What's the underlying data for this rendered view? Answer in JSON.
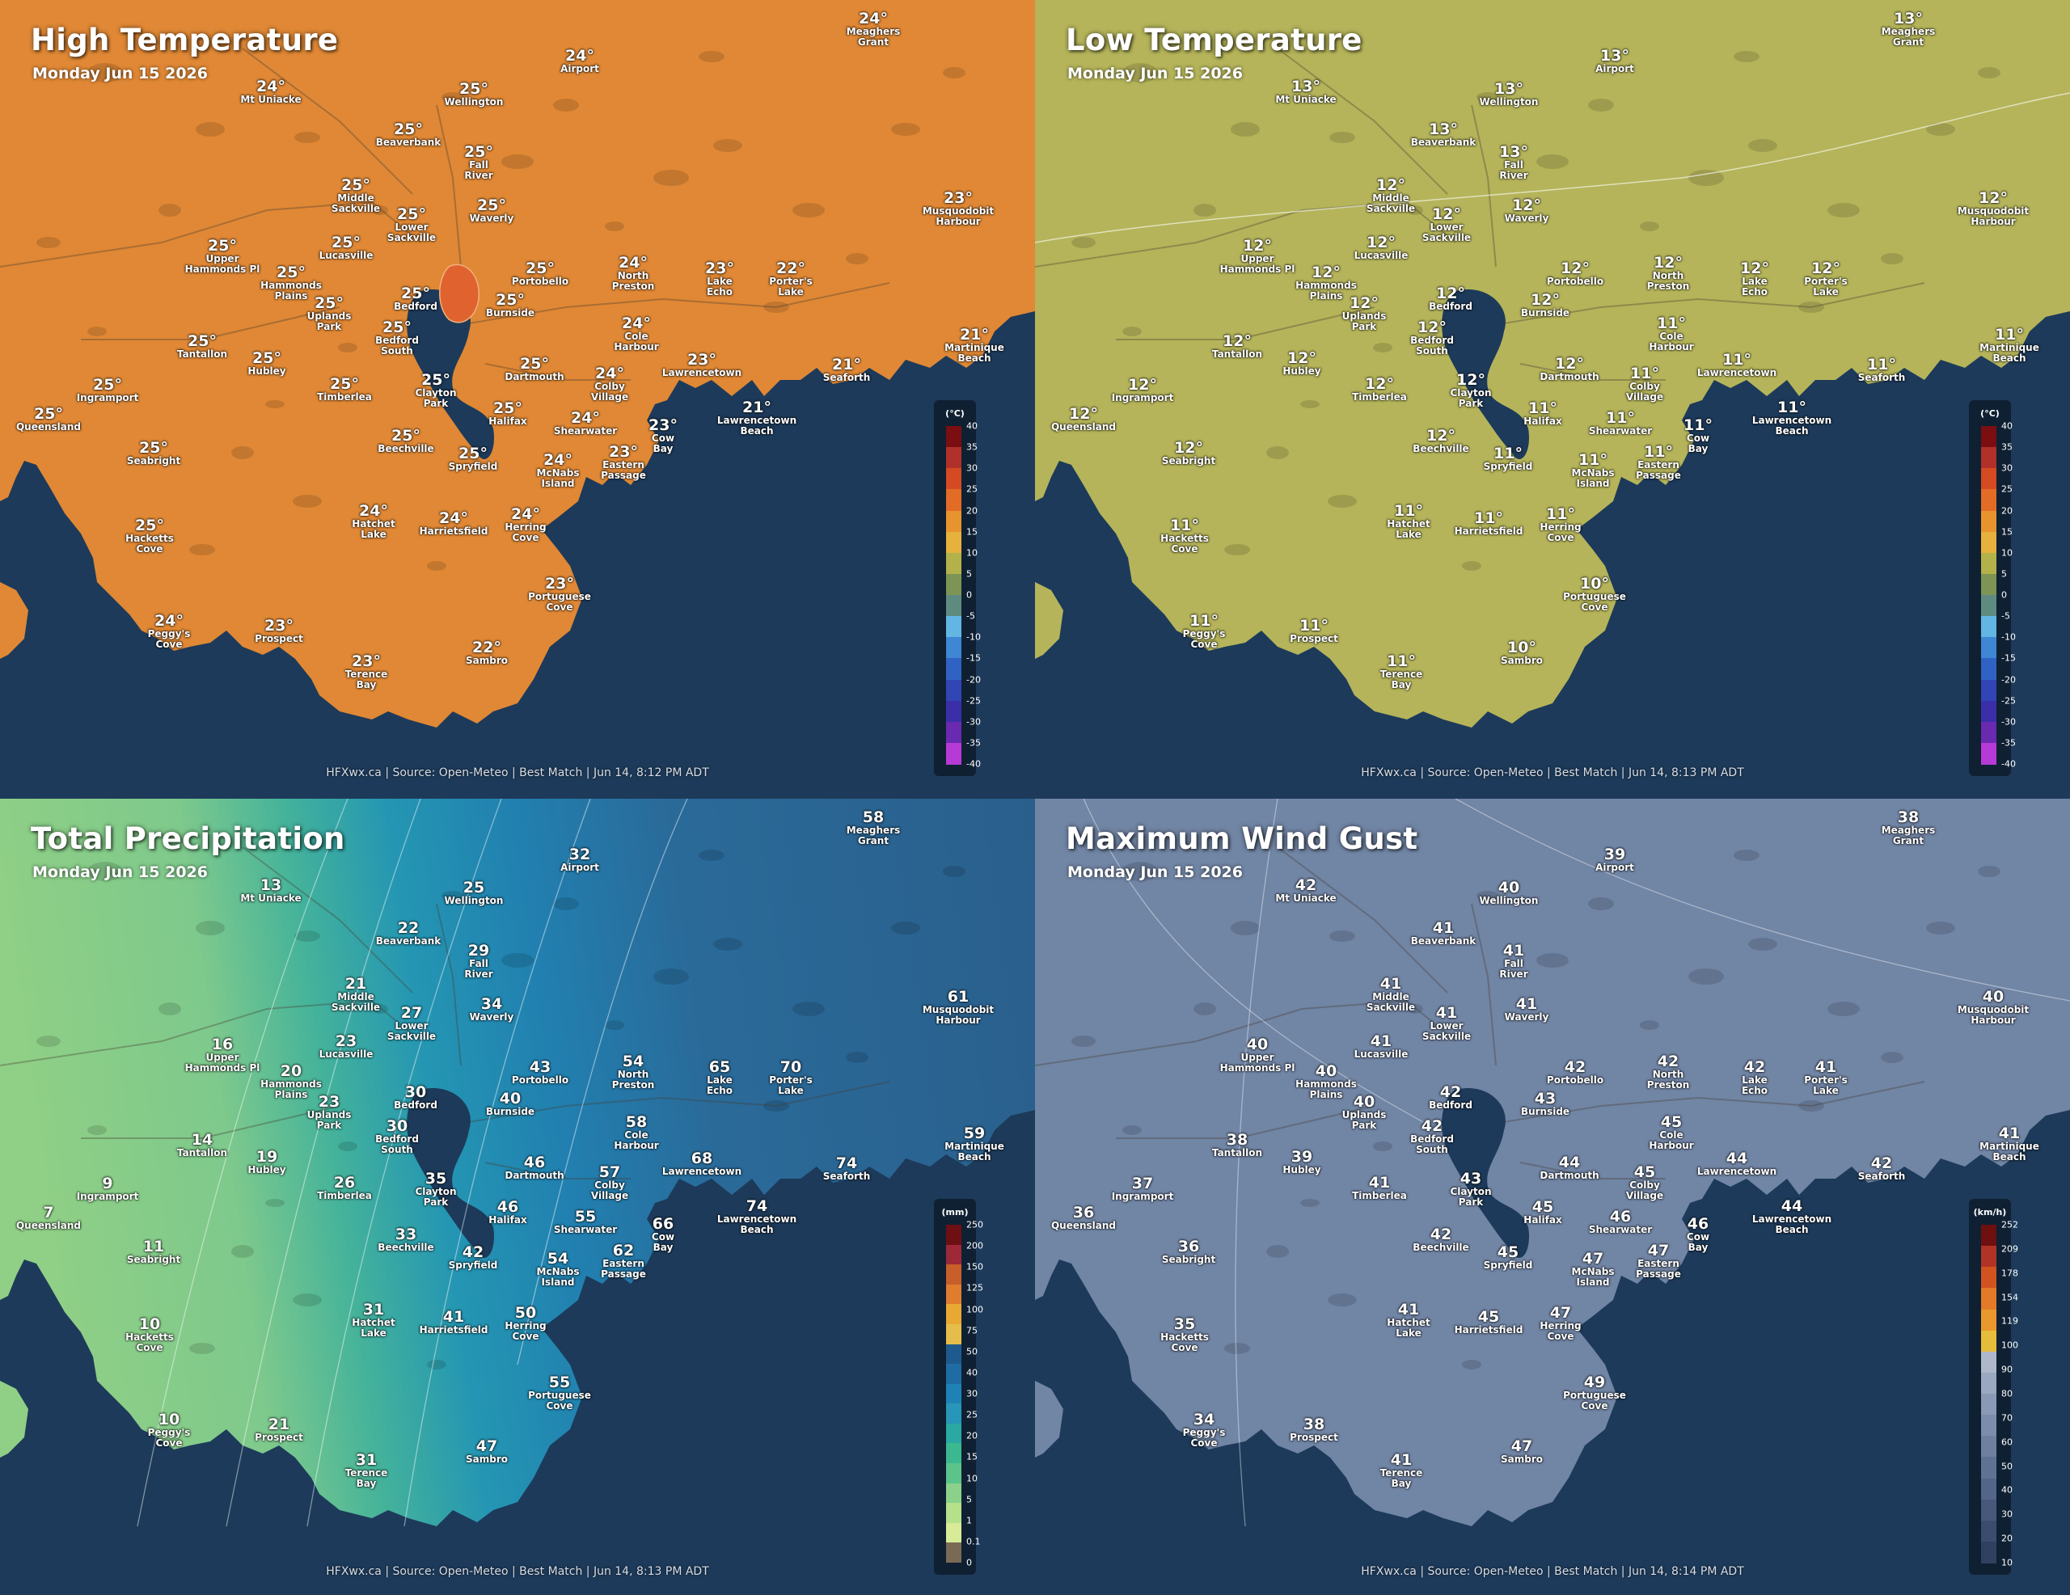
{
  "panels": [
    {
      "title": "High Temperature",
      "date": "Monday Jun 15 2026",
      "footer": "HFXwx.ca | Source: Open-Meteo | Best Match | Jun 14, 8:12 PM ADT",
      "suffix": "°",
      "land_color": "#e08835",
      "legend": {
        "unit": "(°C)",
        "colors": [
          "#7a0e10",
          "#b0302a",
          "#d44a22",
          "#e26b26",
          "#e8942e",
          "#e6b13c",
          "#b3b149",
          "#7d9455",
          "#5f8a80",
          "#62b6e3",
          "#3f86d5",
          "#2f62c2",
          "#3145b5",
          "#3a2fa8",
          "#6a2ab0",
          "#b63ad6"
        ],
        "ticks": [
          "40",
          "35",
          "30",
          "25",
          "20",
          "15",
          "10",
          "5",
          "0",
          "-5",
          "-10",
          "-15",
          "-20",
          "-25",
          "-30",
          "-35",
          "-40"
        ]
      },
      "stations": [
        {
          "name": "Meaghers Grant",
          "value": "24"
        },
        {
          "name": "Airport",
          "value": "24"
        },
        {
          "name": "Mt Uniacke",
          "value": "24"
        },
        {
          "name": "Wellington",
          "value": "25"
        },
        {
          "name": "Beaverbank",
          "value": "25"
        },
        {
          "name": "Fall River",
          "value": "25"
        },
        {
          "name": "Middle Sackville",
          "value": "25"
        },
        {
          "name": "Waverly",
          "value": "25"
        },
        {
          "name": "Lower Sackville",
          "value": "25"
        },
        {
          "name": "Musquodobit Harbour",
          "value": "23"
        },
        {
          "name": "Upper Hammonds Pl",
          "value": "25"
        },
        {
          "name": "Lucasville",
          "value": "25"
        },
        {
          "name": "Portobello",
          "value": "25"
        },
        {
          "name": "North Preston",
          "value": "24"
        },
        {
          "name": "Lake Echo",
          "value": "23"
        },
        {
          "name": "Porter's Lake",
          "value": "22"
        },
        {
          "name": "Hammonds Plains",
          "value": "25"
        },
        {
          "name": "Bedford",
          "value": "25"
        },
        {
          "name": "Burnside",
          "value": "25"
        },
        {
          "name": "Uplands Park",
          "value": "25"
        },
        {
          "name": "Bedford South",
          "value": "25"
        },
        {
          "name": "Cole Harbour",
          "value": "24"
        },
        {
          "name": "Martinique Beach",
          "value": "21"
        },
        {
          "name": "Tantallon",
          "value": "25"
        },
        {
          "name": "Hubley",
          "value": "25"
        },
        {
          "name": "Dartmouth",
          "value": "25"
        },
        {
          "name": "Lawrencetown",
          "value": "23"
        },
        {
          "name": "Seaforth",
          "value": "21"
        },
        {
          "name": "Ingramport",
          "value": "25"
        },
        {
          "name": "Timberlea",
          "value": "25"
        },
        {
          "name": "Clayton Park",
          "value": "25"
        },
        {
          "name": "Colby Village",
          "value": "24"
        },
        {
          "name": "Queensland",
          "value": "25"
        },
        {
          "name": "Halifax",
          "value": "25"
        },
        {
          "name": "Lawrencetown Beach",
          "value": "21"
        },
        {
          "name": "Shearwater",
          "value": "24"
        },
        {
          "name": "Cow Bay",
          "value": "23"
        },
        {
          "name": "Beechville",
          "value": "25"
        },
        {
          "name": "Seabright",
          "value": "25"
        },
        {
          "name": "Spryfield",
          "value": "25"
        },
        {
          "name": "McNabs Island",
          "value": "24"
        },
        {
          "name": "Eastern Passage",
          "value": "23"
        },
        {
          "name": "Hatchet Lake",
          "value": "24"
        },
        {
          "name": "Harrietsfield",
          "value": "24"
        },
        {
          "name": "Herring Cove",
          "value": "24"
        },
        {
          "name": "Hacketts Cove",
          "value": "25"
        },
        {
          "name": "Portuguese Cove",
          "value": "23"
        },
        {
          "name": "Peggy's Cove",
          "value": "24"
        },
        {
          "name": "Prospect",
          "value": "23"
        },
        {
          "name": "Sambro",
          "value": "22"
        },
        {
          "name": "Terence Bay",
          "value": "23"
        }
      ]
    },
    {
      "title": "Low Temperature",
      "date": "Monday Jun 15 2026",
      "footer": "HFXwx.ca | Source: Open-Meteo | Best Match | Jun 14, 8:13 PM ADT",
      "suffix": "°",
      "land_color": "#b5b45a",
      "legend": {
        "unit": "(°C)",
        "colors": [
          "#7a0e10",
          "#b0302a",
          "#d44a22",
          "#e26b26",
          "#e8942e",
          "#e6b13c",
          "#b3b149",
          "#7d9455",
          "#5f8a80",
          "#62b6e3",
          "#3f86d5",
          "#2f62c2",
          "#3145b5",
          "#3a2fa8",
          "#6a2ab0",
          "#b63ad6"
        ],
        "ticks": [
          "40",
          "35",
          "30",
          "25",
          "20",
          "15",
          "10",
          "5",
          "0",
          "-5",
          "-10",
          "-15",
          "-20",
          "-25",
          "-30",
          "-35",
          "-40"
        ]
      },
      "stations": [
        {
          "name": "Meaghers Grant",
          "value": "13"
        },
        {
          "name": "Airport",
          "value": "13"
        },
        {
          "name": "Mt Uniacke",
          "value": "13"
        },
        {
          "name": "Wellington",
          "value": "13"
        },
        {
          "name": "Beaverbank",
          "value": "13"
        },
        {
          "name": "Fall River",
          "value": "13"
        },
        {
          "name": "Middle Sackville",
          "value": "12"
        },
        {
          "name": "Waverly",
          "value": "12"
        },
        {
          "name": "Lower Sackville",
          "value": "12"
        },
        {
          "name": "Musquodobit Harbour",
          "value": "12"
        },
        {
          "name": "Upper Hammonds Pl",
          "value": "12"
        },
        {
          "name": "Lucasville",
          "value": "12"
        },
        {
          "name": "Portobello",
          "value": "12"
        },
        {
          "name": "North Preston",
          "value": "12"
        },
        {
          "name": "Lake Echo",
          "value": "12"
        },
        {
          "name": "Porter's Lake",
          "value": "12"
        },
        {
          "name": "Hammonds Plains",
          "value": "12"
        },
        {
          "name": "Bedford",
          "value": "12"
        },
        {
          "name": "Burnside",
          "value": "12"
        },
        {
          "name": "Uplands Park",
          "value": "12"
        },
        {
          "name": "Bedford South",
          "value": "12"
        },
        {
          "name": "Cole Harbour",
          "value": "11"
        },
        {
          "name": "Martinique Beach",
          "value": "11"
        },
        {
          "name": "Tantallon",
          "value": "12"
        },
        {
          "name": "Hubley",
          "value": "12"
        },
        {
          "name": "Dartmouth",
          "value": "12"
        },
        {
          "name": "Lawrencetown",
          "value": "11"
        },
        {
          "name": "Seaforth",
          "value": "11"
        },
        {
          "name": "Ingramport",
          "value": "12"
        },
        {
          "name": "Timberlea",
          "value": "12"
        },
        {
          "name": "Clayton Park",
          "value": "12"
        },
        {
          "name": "Colby Village",
          "value": "11"
        },
        {
          "name": "Queensland",
          "value": "12"
        },
        {
          "name": "Halifax",
          "value": "11"
        },
        {
          "name": "Lawrencetown Beach",
          "value": "11"
        },
        {
          "name": "Shearwater",
          "value": "11"
        },
        {
          "name": "Cow Bay",
          "value": "11"
        },
        {
          "name": "Beechville",
          "value": "12"
        },
        {
          "name": "Seabright",
          "value": "12"
        },
        {
          "name": "Spryfield",
          "value": "11"
        },
        {
          "name": "McNabs Island",
          "value": "11"
        },
        {
          "name": "Eastern Passage",
          "value": "11"
        },
        {
          "name": "Hatchet Lake",
          "value": "11"
        },
        {
          "name": "Harrietsfield",
          "value": "11"
        },
        {
          "name": "Herring Cove",
          "value": "11"
        },
        {
          "name": "Hacketts Cove",
          "value": "11"
        },
        {
          "name": "Portuguese Cove",
          "value": "10"
        },
        {
          "name": "Peggy's Cove",
          "value": "11"
        },
        {
          "name": "Prospect",
          "value": "11"
        },
        {
          "name": "Sambro",
          "value": "10"
        },
        {
          "name": "Terence Bay",
          "value": "11"
        }
      ]
    },
    {
      "title": "Total Precipitation",
      "date": "Monday Jun 15 2026",
      "footer": "HFXwx.ca | Source: Open-Meteo | Best Match | Jun 14, 8:13 PM ADT",
      "suffix": "",
      "land_color": "#2a6a99",
      "legend": {
        "unit": "(mm)",
        "colors": [
          "#6e0f14",
          "#9e2738",
          "#c85e2a",
          "#e07c2e",
          "#e8a832",
          "#e6bd4a",
          "#1f5a8e",
          "#1e6ca3",
          "#1f82b6",
          "#2796b8",
          "#2aa8a2",
          "#3cb890",
          "#5bc48a",
          "#8bd18a",
          "#b6e08a",
          "#d8eb97",
          "#7a6a55"
        ],
        "ticks": [
          "250",
          "200",
          "150",
          "125",
          "100",
          "75",
          "50",
          "40",
          "30",
          "25",
          "20",
          "15",
          "10",
          "5",
          "1",
          "0.1",
          "0"
        ]
      },
      "stations": [
        {
          "name": "Meaghers Grant",
          "value": "58"
        },
        {
          "name": "Airport",
          "value": "32"
        },
        {
          "name": "Mt Uniacke",
          "value": "13"
        },
        {
          "name": "Wellington",
          "value": "25"
        },
        {
          "name": "Beaverbank",
          "value": "22"
        },
        {
          "name": "Fall River",
          "value": "29"
        },
        {
          "name": "Middle Sackville",
          "value": "21"
        },
        {
          "name": "Waverly",
          "value": "34"
        },
        {
          "name": "Lower Sackville",
          "value": "27"
        },
        {
          "name": "Musquodobit Harbour",
          "value": "61"
        },
        {
          "name": "Upper Hammonds Pl",
          "value": "16"
        },
        {
          "name": "Lucasville",
          "value": "23"
        },
        {
          "name": "Portobello",
          "value": "43"
        },
        {
          "name": "North Preston",
          "value": "54"
        },
        {
          "name": "Lake Echo",
          "value": "65"
        },
        {
          "name": "Porter's Lake",
          "value": "70"
        },
        {
          "name": "Hammonds Plains",
          "value": "20"
        },
        {
          "name": "Bedford",
          "value": "30"
        },
        {
          "name": "Burnside",
          "value": "40"
        },
        {
          "name": "Uplands Park",
          "value": "23"
        },
        {
          "name": "Bedford South",
          "value": "30"
        },
        {
          "name": "Cole Harbour",
          "value": "58"
        },
        {
          "name": "Martinique Beach",
          "value": "59"
        },
        {
          "name": "Tantallon",
          "value": "14"
        },
        {
          "name": "Hubley",
          "value": "19"
        },
        {
          "name": "Dartmouth",
          "value": "46"
        },
        {
          "name": "Lawrencetown",
          "value": "68"
        },
        {
          "name": "Seaforth",
          "value": "74"
        },
        {
          "name": "Ingramport",
          "value": "9"
        },
        {
          "name": "Timberlea",
          "value": "26"
        },
        {
          "name": "Clayton Park",
          "value": "35"
        },
        {
          "name": "Colby Village",
          "value": "57"
        },
        {
          "name": "Queensland",
          "value": "7"
        },
        {
          "name": "Halifax",
          "value": "46"
        },
        {
          "name": "Lawrencetown Beach",
          "value": "74"
        },
        {
          "name": "Shearwater",
          "value": "55"
        },
        {
          "name": "Cow Bay",
          "value": "66"
        },
        {
          "name": "Beechville",
          "value": "33"
        },
        {
          "name": "Seabright",
          "value": "11"
        },
        {
          "name": "Spryfield",
          "value": "42"
        },
        {
          "name": "McNabs Island",
          "value": "54"
        },
        {
          "name": "Eastern Passage",
          "value": "62"
        },
        {
          "name": "Hatchet Lake",
          "value": "31"
        },
        {
          "name": "Harrietsfield",
          "value": "41"
        },
        {
          "name": "Herring Cove",
          "value": "50"
        },
        {
          "name": "Hacketts Cove",
          "value": "10"
        },
        {
          "name": "Portuguese Cove",
          "value": "55"
        },
        {
          "name": "Peggy's Cove",
          "value": "10"
        },
        {
          "name": "Prospect",
          "value": "21"
        },
        {
          "name": "Sambro",
          "value": "47"
        },
        {
          "name": "Terence Bay",
          "value": "31"
        }
      ]
    },
    {
      "title": "Maximum Wind Gust",
      "date": "Monday Jun 15 2026",
      "footer": "HFXwx.ca | Source: Open-Meteo | Best Match | Jun 14, 8:14 PM ADT",
      "suffix": "",
      "land_color": "#7185a5",
      "legend": {
        "unit": "(km/h)",
        "colors": [
          "#6e0f10",
          "#b03426",
          "#d1531f",
          "#e27a27",
          "#e8982c",
          "#e6bd3a",
          "#aeb8ca",
          "#9aa8c0",
          "#8a9ab6",
          "#7c8cab",
          "#6e7fa0",
          "#607294",
          "#536588",
          "#47587b",
          "#3b4c6e",
          "#30405f"
        ],
        "ticks": [
          "252",
          "209",
          "178",
          "154",
          "119",
          "100",
          "90",
          "80",
          "70",
          "60",
          "50",
          "40",
          "30",
          "20",
          "10"
        ]
      },
      "stations": [
        {
          "name": "Meaghers Grant",
          "value": "38"
        },
        {
          "name": "Airport",
          "value": "39"
        },
        {
          "name": "Mt Uniacke",
          "value": "42"
        },
        {
          "name": "Wellington",
          "value": "40"
        },
        {
          "name": "Beaverbank",
          "value": "41"
        },
        {
          "name": "Fall River",
          "value": "41"
        },
        {
          "name": "Middle Sackville",
          "value": "41"
        },
        {
          "name": "Waverly",
          "value": "41"
        },
        {
          "name": "Lower Sackville",
          "value": "41"
        },
        {
          "name": "Musquodobit Harbour",
          "value": "40"
        },
        {
          "name": "Upper Hammonds Pl",
          "value": "40"
        },
        {
          "name": "Lucasville",
          "value": "41"
        },
        {
          "name": "Portobello",
          "value": "42"
        },
        {
          "name": "North Preston",
          "value": "42"
        },
        {
          "name": "Lake Echo",
          "value": "42"
        },
        {
          "name": "Porter's Lake",
          "value": "41"
        },
        {
          "name": "Hammonds Plains",
          "value": "40"
        },
        {
          "name": "Bedford",
          "value": "42"
        },
        {
          "name": "Burnside",
          "value": "43"
        },
        {
          "name": "Uplands Park",
          "value": "40"
        },
        {
          "name": "Bedford South",
          "value": "42"
        },
        {
          "name": "Cole Harbour",
          "value": "45"
        },
        {
          "name": "Martinique Beach",
          "value": "41"
        },
        {
          "name": "Tantallon",
          "value": "38"
        },
        {
          "name": "Hubley",
          "value": "39"
        },
        {
          "name": "Dartmouth",
          "value": "44"
        },
        {
          "name": "Lawrencetown",
          "value": "44"
        },
        {
          "name": "Seaforth",
          "value": "42"
        },
        {
          "name": "Ingramport",
          "value": "37"
        },
        {
          "name": "Timberlea",
          "value": "41"
        },
        {
          "name": "Clayton Park",
          "value": "43"
        },
        {
          "name": "Colby Village",
          "value": "45"
        },
        {
          "name": "Queensland",
          "value": "36"
        },
        {
          "name": "Halifax",
          "value": "45"
        },
        {
          "name": "Lawrencetown Beach",
          "value": "44"
        },
        {
          "name": "Shearwater",
          "value": "46"
        },
        {
          "name": "Cow Bay",
          "value": "46"
        },
        {
          "name": "Beechville",
          "value": "42"
        },
        {
          "name": "Seabright",
          "value": "36"
        },
        {
          "name": "Spryfield",
          "value": "45"
        },
        {
          "name": "McNabs Island",
          "value": "47"
        },
        {
          "name": "Eastern Passage",
          "value": "47"
        },
        {
          "name": "Hatchet Lake",
          "value": "41"
        },
        {
          "name": "Harrietsfield",
          "value": "45"
        },
        {
          "name": "Herring Cove",
          "value": "47"
        },
        {
          "name": "Hacketts Cove",
          "value": "35"
        },
        {
          "name": "Portuguese Cove",
          "value": "49"
        },
        {
          "name": "Peggy's Cove",
          "value": "34"
        },
        {
          "name": "Prospect",
          "value": "38"
        },
        {
          "name": "Sambro",
          "value": "47"
        },
        {
          "name": "Terence Bay",
          "value": "41"
        }
      ]
    }
  ]
}
